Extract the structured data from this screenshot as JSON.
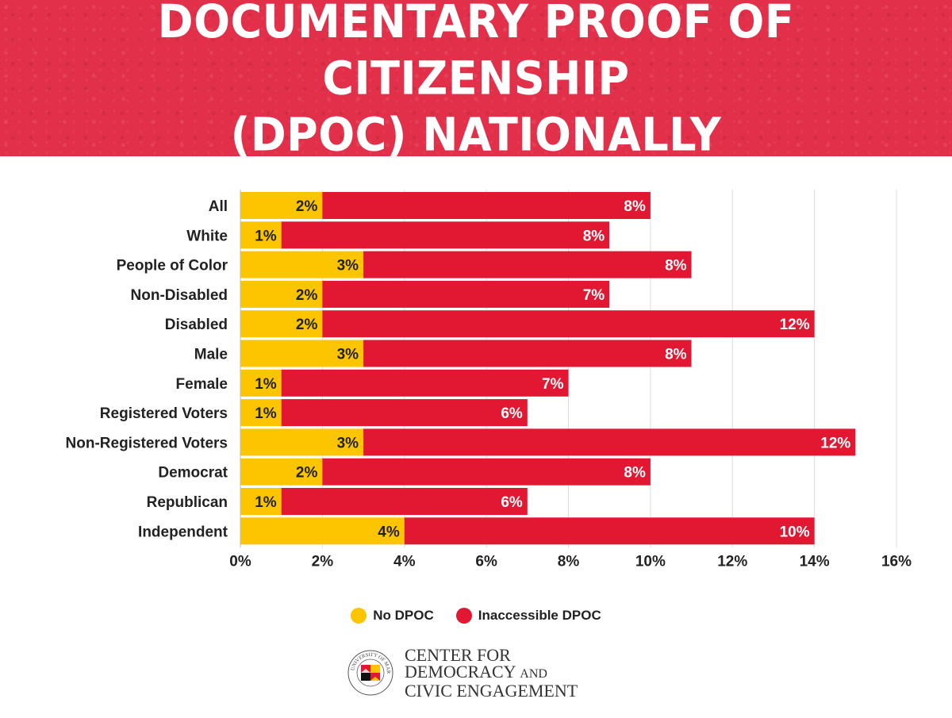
{
  "header": {
    "title_line1": "DOCUMENTARY PROOF OF CITIZENSHIP",
    "title_line2": "(DPOC) NATIONALLY"
  },
  "colors": {
    "header_bg": "#e2304a",
    "no_dpoc": "#fcc500",
    "inaccessible_dpoc": "#e21833",
    "gridline": "#dddddd"
  },
  "chart_data": {
    "type": "bar",
    "orientation": "horizontal",
    "stacked": true,
    "categories": [
      "All",
      "White",
      "People of Color",
      "Non-Disabled",
      "Disabled",
      "Male",
      "Female",
      "Registered Voters",
      "Non-Registered Voters",
      "Democrat",
      "Republican",
      "Independent"
    ],
    "series": [
      {
        "name": "No DPOC",
        "values": [
          2,
          1,
          3,
          2,
          2,
          3,
          1,
          1,
          3,
          2,
          1,
          4
        ],
        "labels": [
          "2%",
          "1%",
          "3%",
          "2%",
          "2%",
          "3%",
          "1%",
          "1%",
          "3%",
          "2%",
          "1%",
          "4%"
        ]
      },
      {
        "name": "Inaccessible DPOC",
        "values": [
          8,
          8,
          8,
          7,
          12,
          8,
          7,
          6,
          12,
          8,
          6,
          10
        ],
        "labels": [
          "8%",
          "8%",
          "8%",
          "7%",
          "12%",
          "8%",
          "7%",
          "6%",
          "12%",
          "8%",
          "6%",
          "10%"
        ]
      }
    ],
    "xlim": [
      0,
      16
    ],
    "xticks": [
      0,
      2,
      4,
      6,
      8,
      10,
      12,
      14,
      16
    ],
    "xtick_labels": [
      "0%",
      "2%",
      "4%",
      "6%",
      "8%",
      "10%",
      "12%",
      "14%",
      "16%"
    ],
    "grid": true,
    "legend_position": "bottom-center"
  },
  "legend": {
    "no_dpoc": "No DPOC",
    "inaccessible_dpoc": "Inaccessible DPOC"
  },
  "logo": {
    "line1": "CENTER FOR",
    "line2a": "DEMOCRACY",
    "line2b": "AND",
    "line3": "CIVIC ENGAGEMENT",
    "seal_text": "UNIVERSITY OF MARYLAND"
  }
}
